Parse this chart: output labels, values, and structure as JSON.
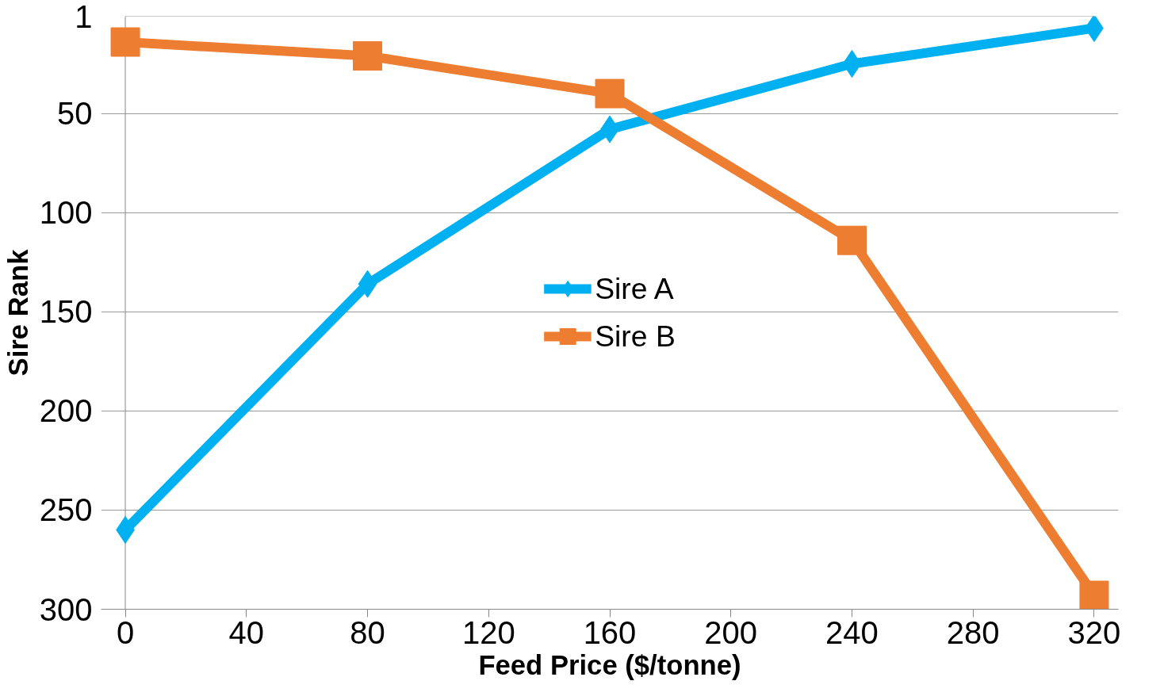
{
  "chart_data": {
    "type": "line",
    "xlabel": "Feed Price ($/tonne)",
    "ylabel": "Sire Rank",
    "x": [
      0,
      80,
      160,
      240,
      320
    ],
    "series": [
      {
        "name": "Sire A",
        "color": "#00b0f0",
        "marker": "diamond",
        "values": [
          260,
          136,
          58,
          25,
          7
        ]
      },
      {
        "name": "Sire B",
        "color": "#ed7d31",
        "marker": "square",
        "values": [
          14,
          21,
          40,
          114,
          293
        ]
      }
    ],
    "xlim": [
      0,
      320
    ],
    "xticks": [
      0,
      40,
      80,
      120,
      160,
      200,
      240,
      280,
      320
    ],
    "ylim": [
      300,
      1
    ],
    "yticks": [
      1,
      50,
      100,
      150,
      200,
      250,
      300
    ],
    "grid": "y",
    "legend": "center",
    "line_style": "solid"
  }
}
